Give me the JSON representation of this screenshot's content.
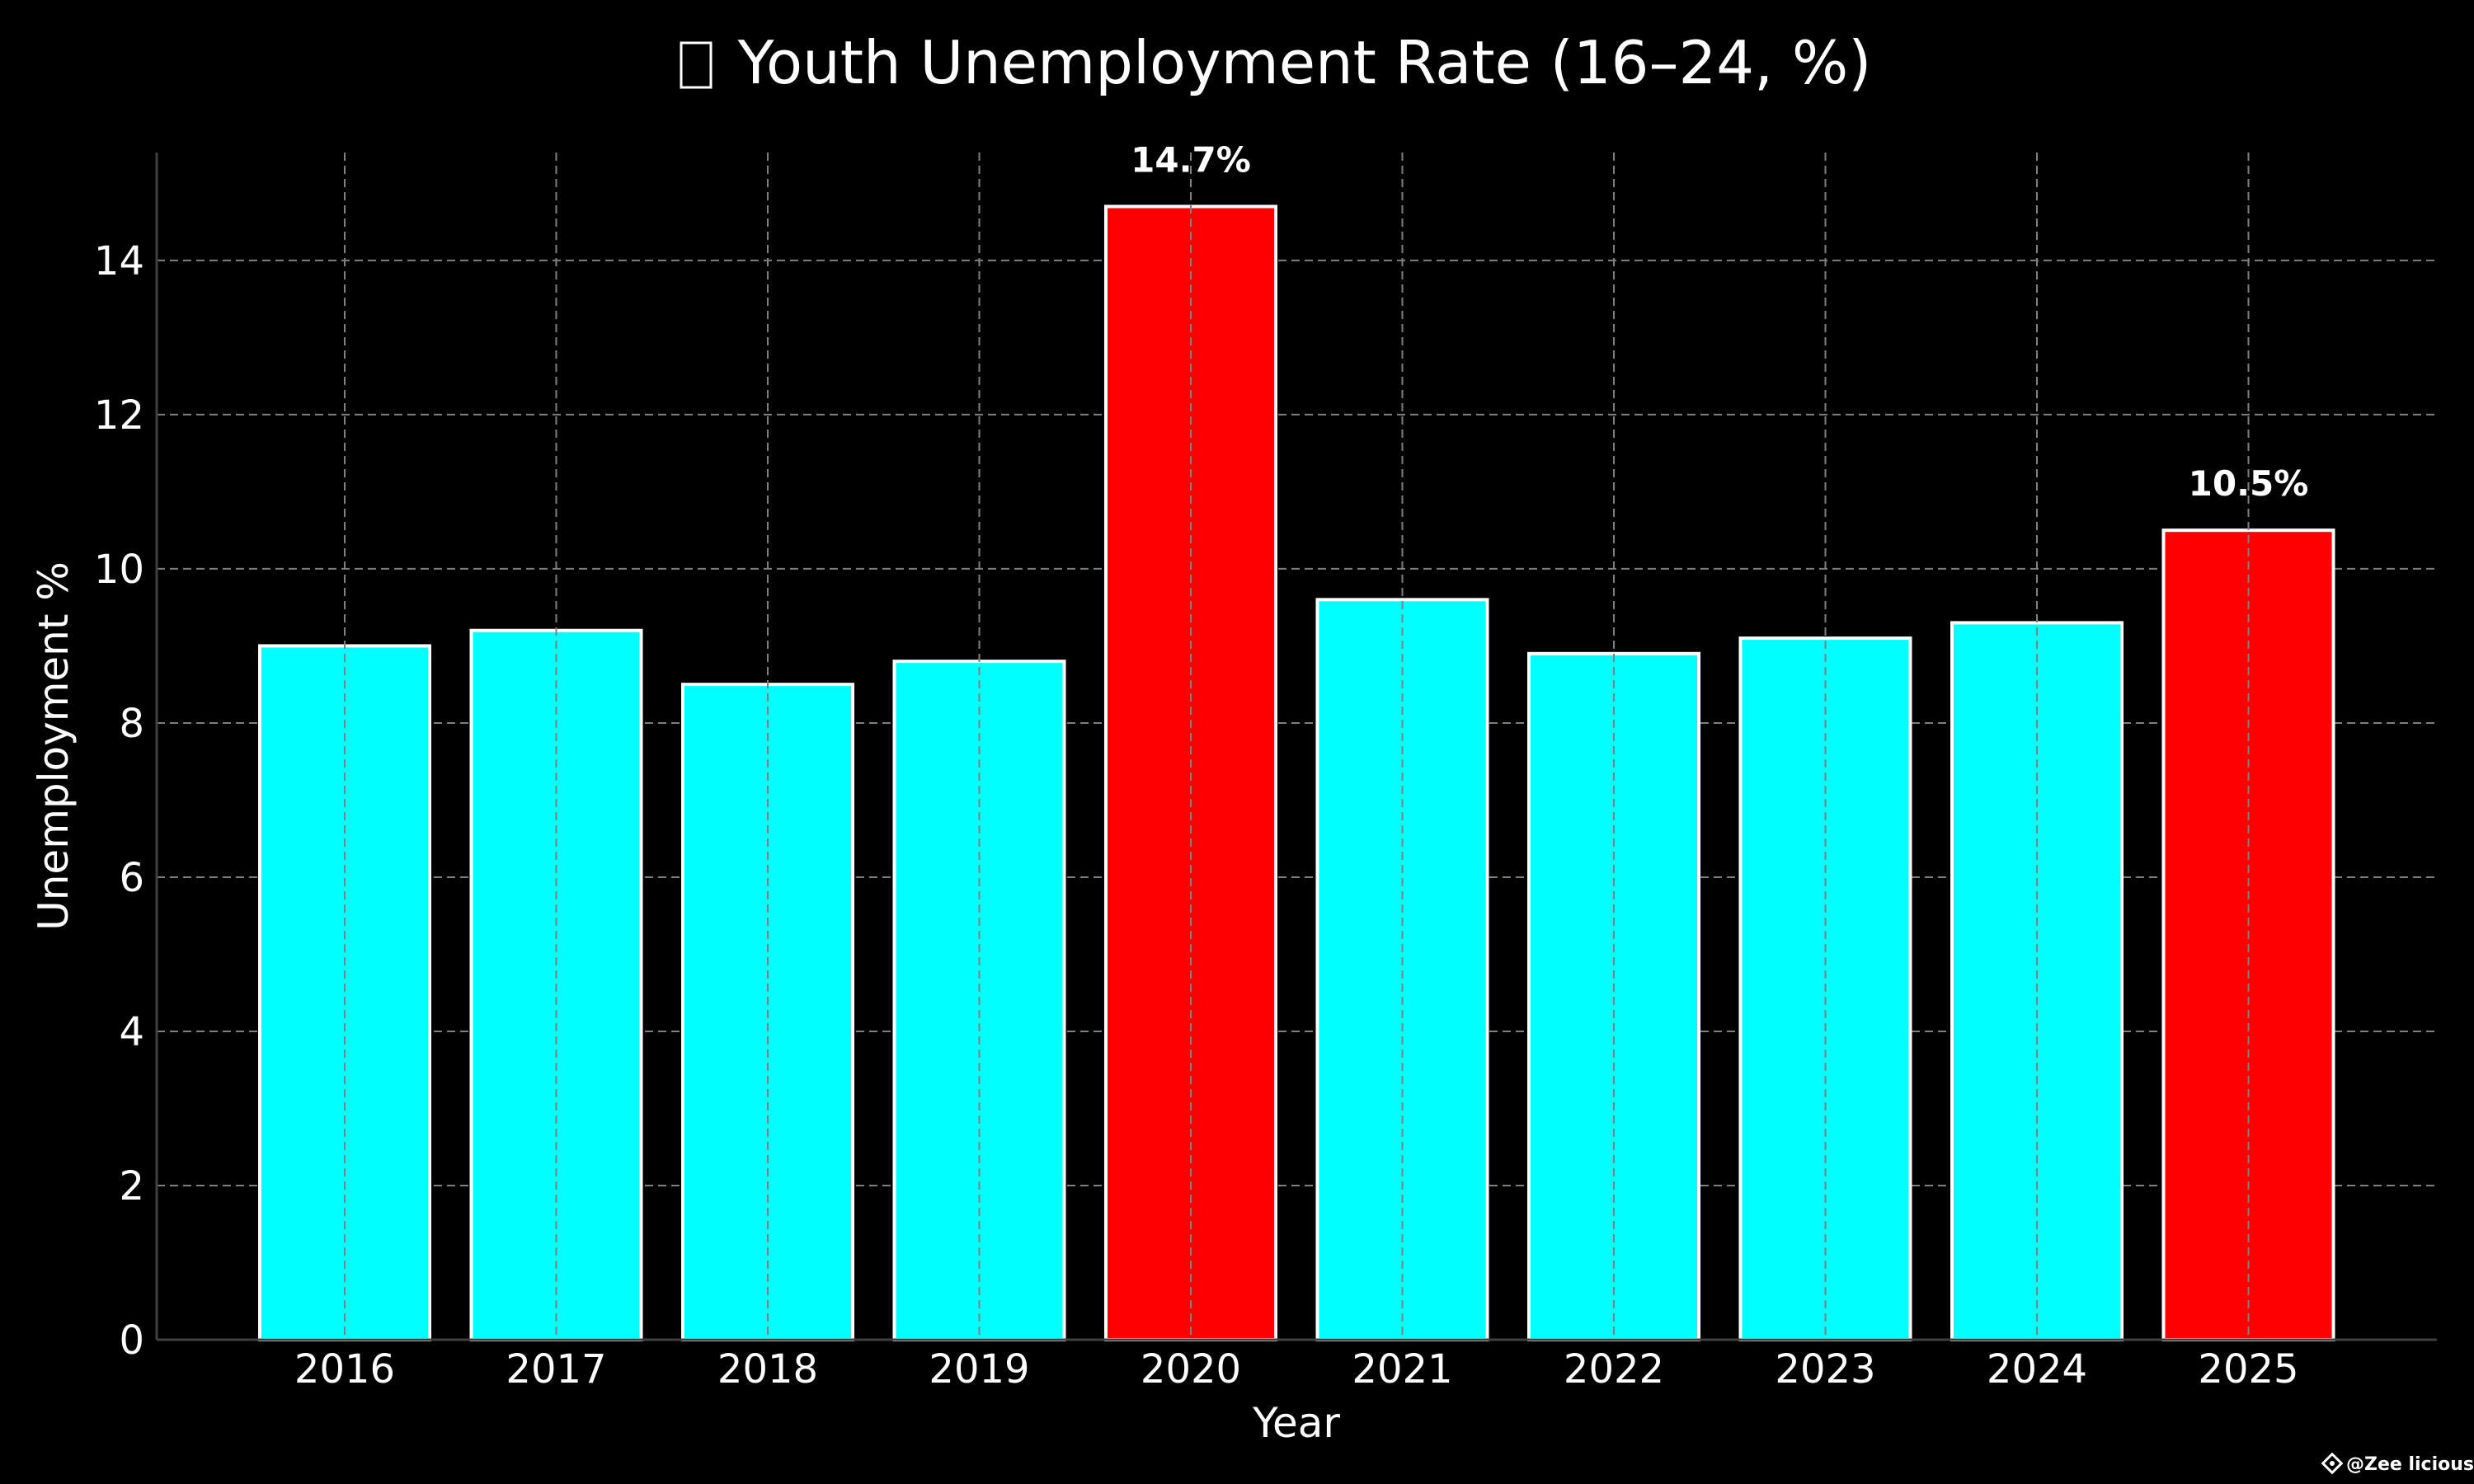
{
  "chart_data": {
    "type": "bar",
    "title": "Youth Unemployment Rate (16–24, %)",
    "title_icon": "chart-emoji-icon",
    "xlabel": "Year",
    "ylabel": "Unemployment %",
    "categories": [
      "2016",
      "2017",
      "2018",
      "2019",
      "2020",
      "2021",
      "2022",
      "2023",
      "2024",
      "2025"
    ],
    "values": [
      9.0,
      9.2,
      8.5,
      8.8,
      14.7,
      9.6,
      8.9,
      9.1,
      9.3,
      10.5
    ],
    "highlighted": [
      false,
      false,
      false,
      false,
      true,
      false,
      false,
      false,
      false,
      true
    ],
    "data_labels": [
      "",
      "",
      "",
      "",
      "14.7%",
      "",
      "",
      "",
      "",
      "10.5%"
    ],
    "ylim": [
      0,
      15.4
    ],
    "yticks": [
      0,
      2,
      4,
      6,
      8,
      10,
      12,
      14
    ],
    "grid": true,
    "legend": "none",
    "colors": {
      "background": "#000000",
      "bar": "#00ffff",
      "bar_highlight": "#ff0000",
      "bar_edge": "#ffffff",
      "grid": "#808080",
      "axis": "#404040"
    }
  },
  "watermark": "@Zee licious"
}
